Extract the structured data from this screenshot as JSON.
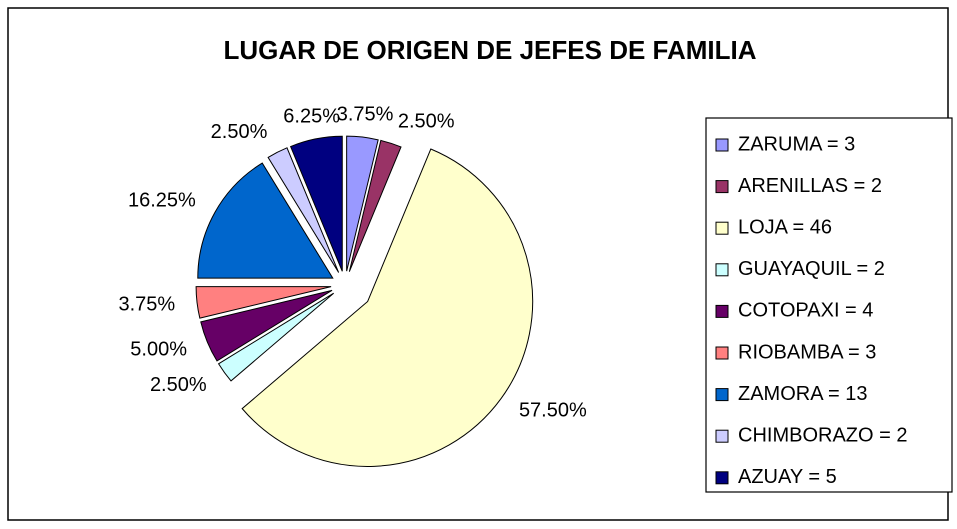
{
  "chart_data": {
    "type": "pie",
    "title": "LUGAR DE ORIGEN DE JEFES DE FAMILIA",
    "categories": [
      "ZARUMA = 3",
      "ARENILLAS = 2",
      "LOJA = 46",
      "GUAYAQUIL = 2",
      "COTOPAXI = 4",
      "RIOBAMBA = 3",
      "ZAMORA = 13",
      "CHIMBORAZO = 2",
      "AZUAY = 5"
    ],
    "values": [
      3.75,
      2.5,
      57.5,
      2.5,
      5,
      3.75,
      16.25,
      2.5,
      6.25
    ],
    "value_labels": [
      "3.75%",
      "2.50%",
      "57.50%",
      "2.50%",
      "5.00%",
      "3.75%",
      "16.25%",
      "2.50%",
      "6.25%"
    ],
    "colors": [
      "#9999ff",
      "#993366",
      "#ffffcc",
      "#ccffff",
      "#660066",
      "#ff8080",
      "#0066cc",
      "#ccccff",
      "#000080"
    ],
    "legend": "right"
  }
}
